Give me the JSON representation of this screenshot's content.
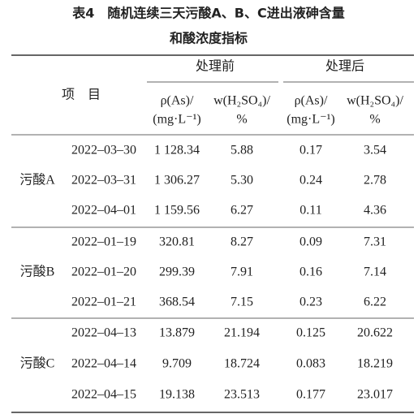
{
  "title": {
    "line1": "表4　随机连续三天污酸A、B、C进出液砷含量",
    "line2": "和酸浓度指标"
  },
  "table": {
    "header": {
      "item": "项　目",
      "groups": [
        "处理前",
        "处理后"
      ],
      "columns": [
        [
          "ρ(As)/",
          "(mg·L⁻¹)"
        ],
        [
          "w(H₂SO₄)/",
          "%"
        ],
        [
          "ρ(As)/",
          "(mg·L⁻¹)"
        ],
        [
          "w(H₂SO₄)/",
          "%"
        ]
      ]
    },
    "groups": [
      {
        "label": "污酸A",
        "rows": [
          [
            "2022–03–30",
            "1 128.34",
            "5.88",
            "0.17",
            "3.54"
          ],
          [
            "2022–03–31",
            "1 306.27",
            "5.30",
            "0.24",
            "2.78"
          ],
          [
            "2022–04–01",
            "1 159.56",
            "6.27",
            "0.11",
            "4.36"
          ]
        ]
      },
      {
        "label": "污酸B",
        "rows": [
          [
            "2022–01–19",
            "320.81",
            "8.27",
            "0.09",
            "7.31"
          ],
          [
            "2022–01–20",
            "299.39",
            "7.91",
            "0.16",
            "7.14"
          ],
          [
            "2022–01–21",
            "368.54",
            "7.15",
            "0.23",
            "6.22"
          ]
        ]
      },
      {
        "label": "污酸C",
        "rows": [
          [
            "2022–04–13",
            "13.879",
            "21.194",
            "0.125",
            "20.622"
          ],
          [
            "2022–04–14",
            "9.709",
            "18.724",
            "0.083",
            "18.219"
          ],
          [
            "2022–04–15",
            "19.138",
            "23.513",
            "0.177",
            "23.017"
          ]
        ]
      }
    ]
  }
}
